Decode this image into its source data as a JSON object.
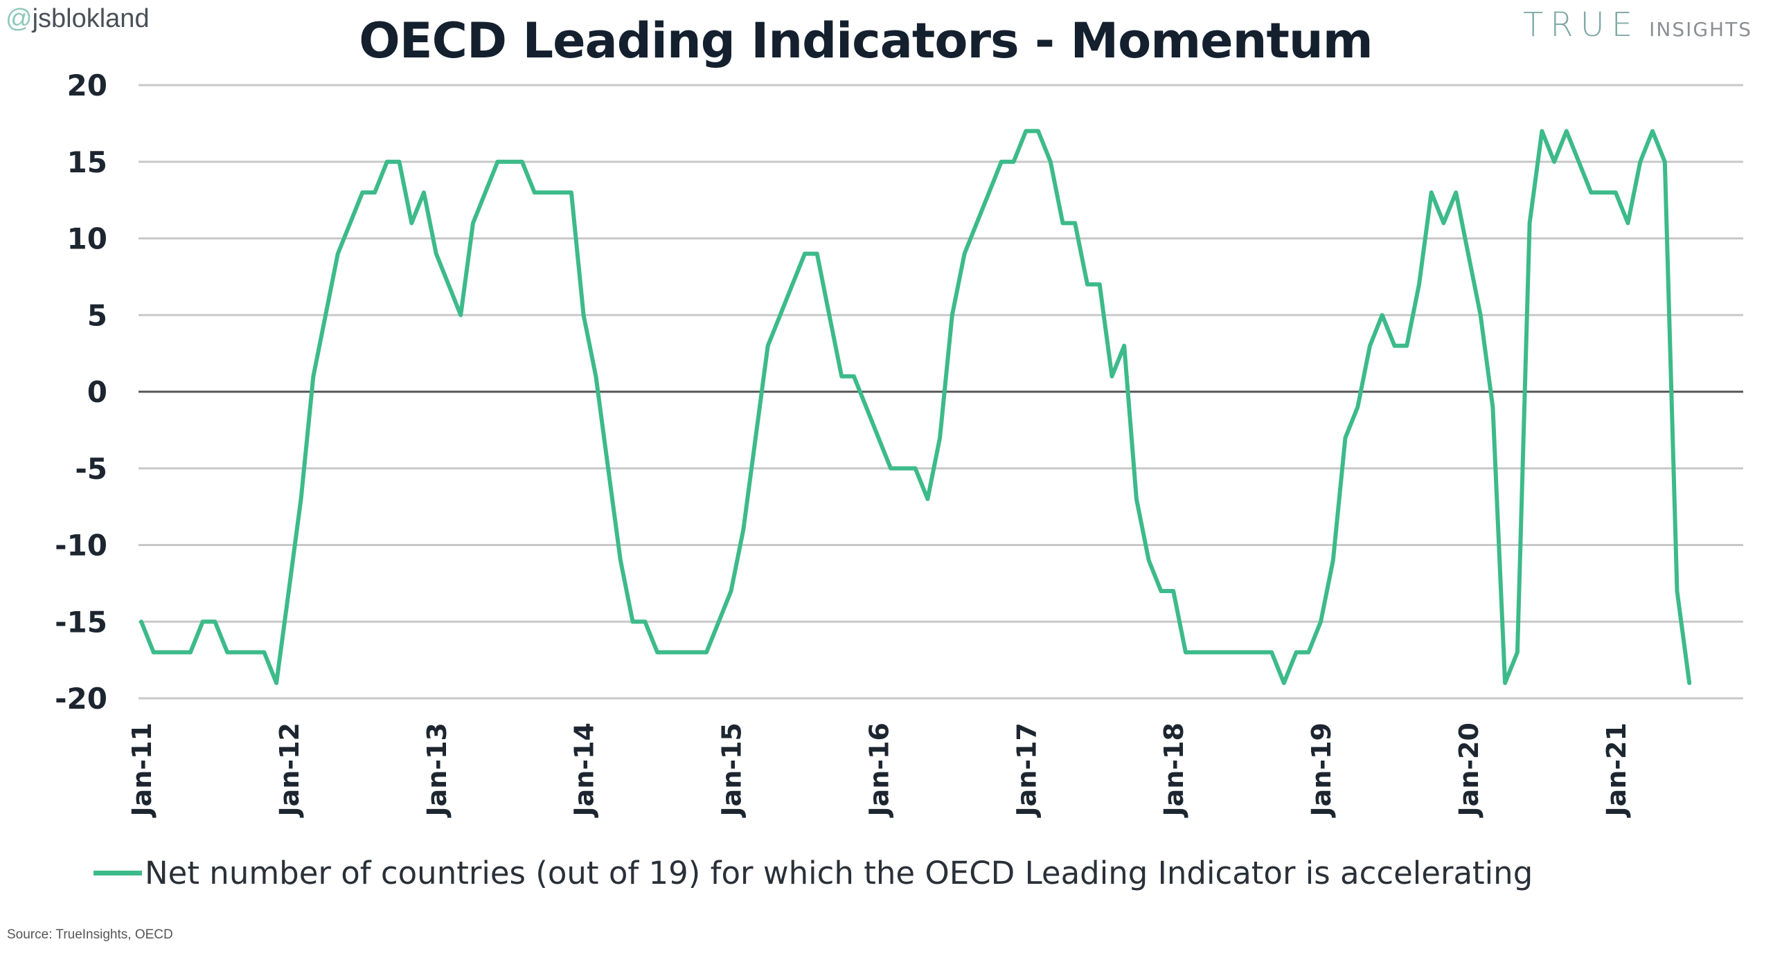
{
  "header": {
    "handle_at": "@",
    "handle_name": "jsblokland",
    "logo_brand": "TRUE",
    "logo_sub": "INSIGHTS"
  },
  "colors": {
    "series": "#3dba8a",
    "grid": "#c8c8c8",
    "zero_line": "#555555",
    "text": "#1d2630"
  },
  "chart_data": {
    "type": "line",
    "title": "OECD Leading Indicators - Momentum",
    "xlabel": "",
    "ylabel": "",
    "ylim": [
      -20,
      20
    ],
    "yticks": [
      20,
      15,
      10,
      5,
      0,
      -5,
      -10,
      -15,
      -20
    ],
    "xticks": [
      "Jan-11",
      "Jan-12",
      "Jan-13",
      "Jan-14",
      "Jan-15",
      "Jan-16",
      "Jan-17",
      "Jan-18",
      "Jan-19",
      "Jan-20",
      "Jan-21"
    ],
    "x_start": "Jan-11",
    "x_frequency": "monthly",
    "grid": true,
    "legend_position": "bottom",
    "series": [
      {
        "name": "Net number of countries (out of 19) for which the OECD Leading Indicator is accelerating",
        "values": [
          -15,
          -17,
          -17,
          -17,
          -17,
          -15,
          -15,
          -17,
          -17,
          -17,
          -17,
          -19,
          -13,
          -7,
          1,
          5,
          9,
          11,
          13,
          13,
          15,
          15,
          11,
          13,
          9,
          7,
          5,
          11,
          13,
          15,
          15,
          15,
          13,
          13,
          13,
          13,
          5,
          1,
          -5,
          -11,
          -15,
          -15,
          -17,
          -17,
          -17,
          -17,
          -17,
          -15,
          -13,
          -9,
          -3,
          3,
          5,
          7,
          9,
          9,
          5,
          1,
          1,
          -1,
          -3,
          -5,
          -5,
          -5,
          -7,
          -3,
          5,
          9,
          11,
          13,
          15,
          15,
          17,
          17,
          15,
          11,
          11,
          7,
          7,
          1,
          3,
          -7,
          -11,
          -13,
          -13,
          -17,
          -17,
          -17,
          -17,
          -17,
          -17,
          -17,
          -17,
          -19,
          -17,
          -17,
          -15,
          -11,
          -3,
          -1,
          3,
          5,
          3,
          3,
          7,
          13,
          11,
          13,
          9,
          5,
          -1,
          -19,
          -17,
          11,
          17,
          15,
          17,
          15,
          13,
          13,
          13,
          11,
          15,
          17,
          15,
          -13,
          -19
        ]
      }
    ]
  },
  "footer": {
    "source": "Source: TrueInsights, OECD"
  }
}
